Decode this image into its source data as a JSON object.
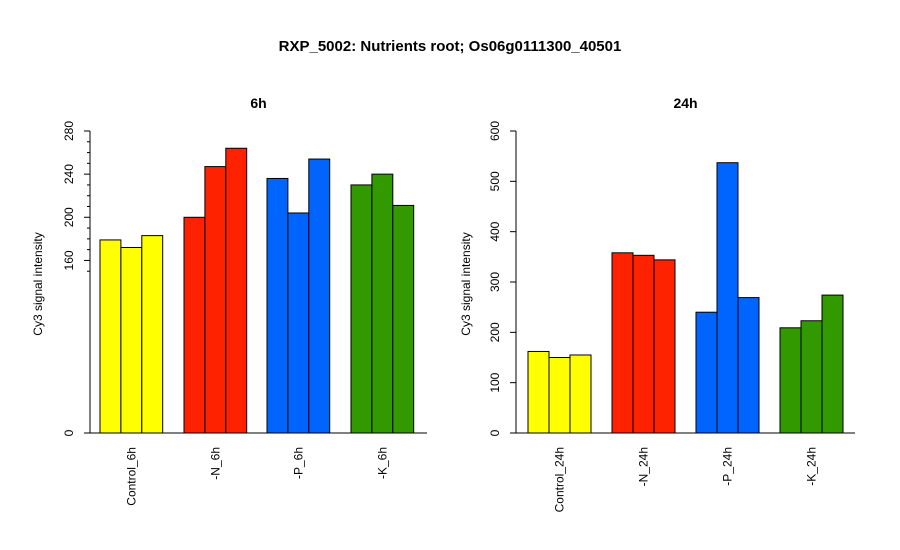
{
  "page": {
    "title": "RXP_5002: Nutrients root; Os06g0111300_40501"
  },
  "chart_data": [
    {
      "type": "bar",
      "title": "6h",
      "ylabel": "Cy3 signal intensity",
      "xlabel": "",
      "ylim": [
        0,
        280
      ],
      "yticks": [
        0,
        160,
        200,
        240,
        280
      ],
      "grid": false,
      "categories": [
        "Control_6h",
        "-N_6h",
        "-P_6h",
        "-K_6h"
      ],
      "colors": [
        "#ffff00",
        "#ff2200",
        "#0064ff",
        "#339900"
      ],
      "groups": [
        [
          179,
          172,
          183
        ],
        [
          200,
          247,
          264
        ],
        [
          236,
          204,
          254
        ],
        [
          230,
          240,
          211
        ]
      ]
    },
    {
      "type": "bar",
      "title": "24h",
      "ylabel": "Cy3 signal intensity",
      "xlabel": "",
      "ylim": [
        0,
        600
      ],
      "yticks": [
        0,
        100,
        200,
        300,
        400,
        500,
        600
      ],
      "grid": false,
      "categories": [
        "Control_24h",
        "-N_24h",
        "-P_24h",
        "-K_24h"
      ],
      "colors": [
        "#ffff00",
        "#ff2200",
        "#0064ff",
        "#339900"
      ],
      "groups": [
        [
          162,
          150,
          155
        ],
        [
          358,
          353,
          344
        ],
        [
          240,
          537,
          269
        ],
        [
          209,
          223,
          274
        ]
      ]
    }
  ]
}
